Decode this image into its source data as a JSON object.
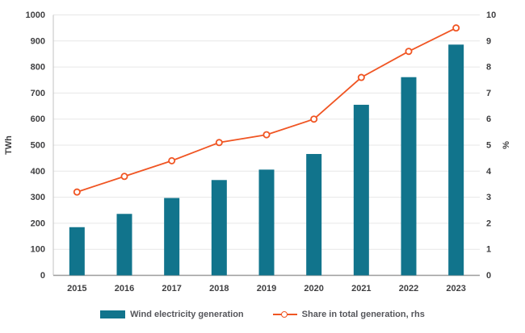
{
  "chart_data": {
    "type": "bar+line",
    "categories": [
      "2015",
      "2016",
      "2017",
      "2018",
      "2019",
      "2020",
      "2021",
      "2022",
      "2023"
    ],
    "series": [
      {
        "name": "Wind electricity generation",
        "type": "bar",
        "axis": "left",
        "unit": "TWh",
        "color": "#11748c",
        "values": [
          185,
          236,
          297,
          366,
          406,
          466,
          655,
          761,
          886
        ]
      },
      {
        "name": "Share in total generation, rhs",
        "type": "line",
        "axis": "right",
        "unit": "%",
        "color": "#f05523",
        "marker": "open-circle",
        "values": [
          3.2,
          3.8,
          4.4,
          5.1,
          5.4,
          6.0,
          7.6,
          8.6,
          9.5
        ]
      }
    ],
    "left_axis": {
      "label": "TWh",
      "min": 0,
      "max": 1000,
      "tick_step": 100
    },
    "right_axis": {
      "label": "%",
      "min": 0,
      "max": 10,
      "tick_step": 1
    },
    "grid": "horizontal",
    "legend_position": "bottom"
  },
  "styles": {
    "background": "#ffffff",
    "grid_color": "#e7e7e7",
    "baseline_color": "#9d9d9d",
    "left_spine_color": "#c2c2c2",
    "tick_label_color": "#3f3f41",
    "legend_text_color": "#55565b"
  }
}
